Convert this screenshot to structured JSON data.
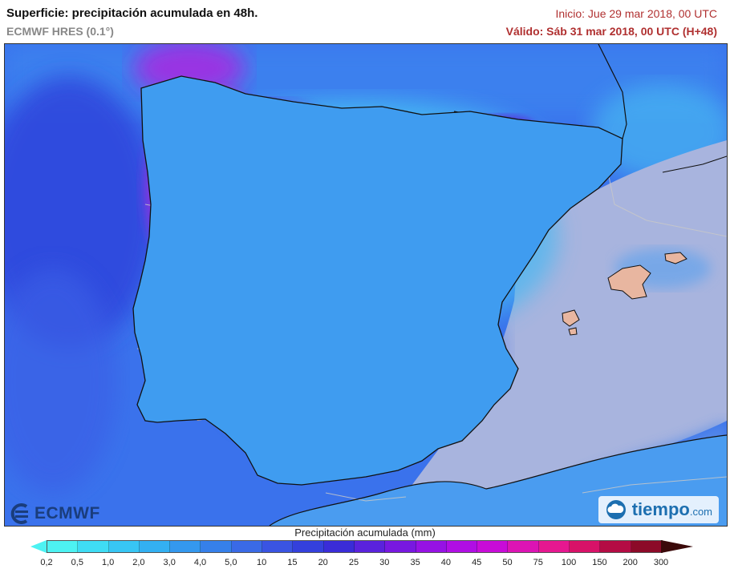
{
  "header": {
    "title": "Superficie: precipitación acumulada en 48h.",
    "model": "ECMWF HRES (0.1°)",
    "init": "Inicio: Jue 29 mar 2018, 00 UTC",
    "valid": "Válido: Sáb 31 mar 2018, 00 UTC (H+48)"
  },
  "logos": {
    "ecmwf": "ECMWF",
    "tiempo": "tiempo",
    "tiempo_suffix": ".com"
  },
  "legend": {
    "title": "Precipitación acumulada (mm)",
    "ticks": [
      "0,2",
      "0,5",
      "1,0",
      "2,0",
      "3,0",
      "4,0",
      "5,0",
      "10",
      "15",
      "20",
      "25",
      "30",
      "35",
      "40",
      "45",
      "50",
      "75",
      "100",
      "150",
      "200",
      "300"
    ],
    "colors": [
      "#4df2f2",
      "#3fdcf4",
      "#38c6f4",
      "#33b0f2",
      "#3498ee",
      "#3680ea",
      "#3a6ae6",
      "#3a54e2",
      "#3440dc",
      "#3a2cd8",
      "#5a22dc",
      "#7818e0",
      "#9612e4",
      "#b00ee4",
      "#c80cd8",
      "#dc14b4",
      "#e61890",
      "#d81268",
      "#b40c44",
      "#8c0a28"
    ],
    "arrow_color": "#3b0a0a"
  },
  "colors": {
    "sea": "#3a78ee",
    "land": "#41a9f2",
    "dry": "#e8b8a0",
    "heavy": "#9b2ce0",
    "borders": "#c8c8c8",
    "coast": "#111111"
  },
  "icons": {
    "ecmwf": "ecmwf-logo-icon",
    "tiempo": "tiempo-cloud-icon"
  }
}
